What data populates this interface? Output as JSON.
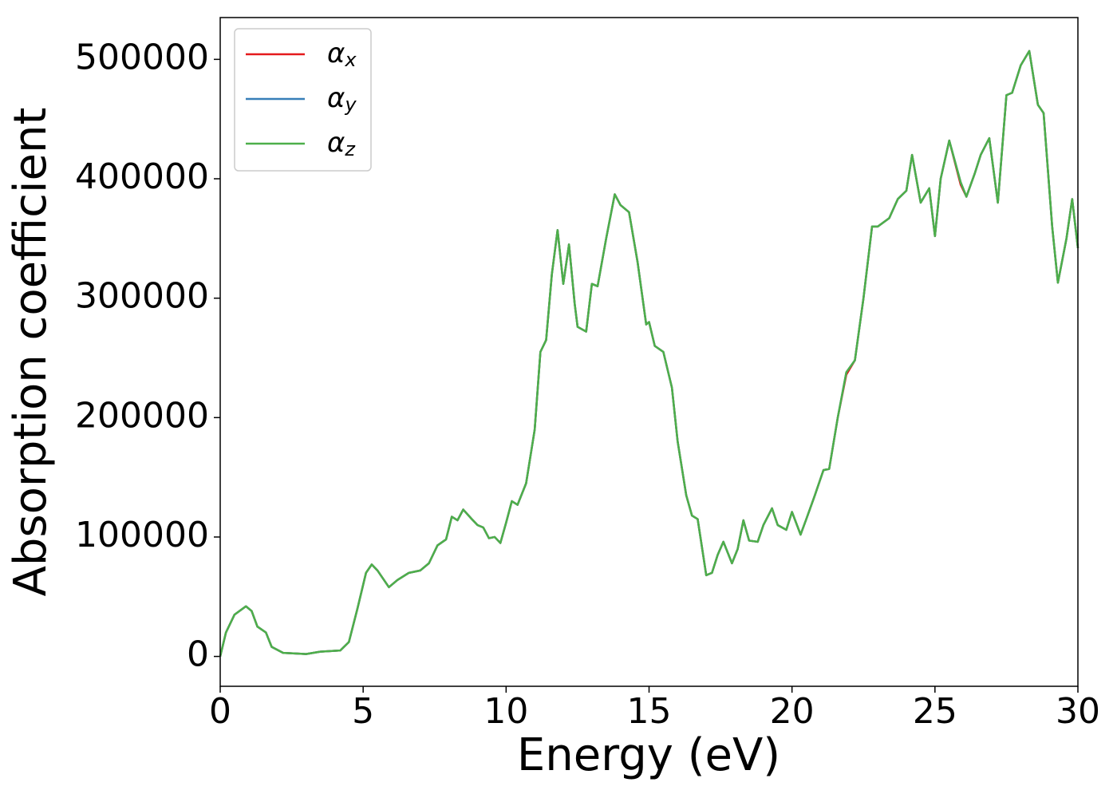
{
  "chart_data": {
    "type": "line",
    "xlabel": "Energy (eV)",
    "ylabel": "Absorption coefficient",
    "x": [
      0,
      0.2,
      0.5,
      0.9,
      1.1,
      1.3,
      1.6,
      1.8,
      2.2,
      3,
      3.5,
      4.2,
      4.5,
      4.8,
      5.1,
      5.3,
      5.5,
      5.7,
      5.9,
      6.2,
      6.6,
      7,
      7.3,
      7.6,
      7.9,
      8.1,
      8.3,
      8.5,
      8.8,
      9,
      9.2,
      9.4,
      9.6,
      9.8,
      10,
      10.2,
      10.4,
      10.7,
      11,
      11.2,
      11.4,
      11.6,
      11.8,
      12,
      12.2,
      12.4,
      12.5,
      12.8,
      13,
      13.2,
      13.5,
      13.8,
      14,
      14.3,
      14.6,
      14.9,
      15,
      15.2,
      15.5,
      15.8,
      16,
      16.3,
      16.5,
      16.7,
      17,
      17.2,
      17.4,
      17.6,
      17.9,
      18.1,
      18.3,
      18.5,
      18.8,
      19,
      19.3,
      19.5,
      19.8,
      20,
      20.3,
      20.5,
      20.8,
      21.1,
      21.3,
      21.6,
      21.9,
      22.2,
      22.5,
      22.8,
      23,
      23.4,
      23.7,
      24,
      24.2,
      24.5,
      24.8,
      25,
      25.2,
      25.5,
      25.9,
      26.1,
      26.4,
      26.6,
      26.9,
      27.2,
      27.5,
      27.7,
      28,
      28.3,
      28.6,
      28.8,
      29.1,
      29.3,
      29.6,
      29.8,
      30
    ],
    "series": [
      {
        "name": "αx",
        "color": "#e41a1c",
        "values": [
          0,
          20000,
          35000,
          42000,
          38000,
          25000,
          20000,
          8000,
          3000,
          2000,
          4000,
          5000,
          12000,
          40000,
          70000,
          77000,
          72000,
          65000,
          58000,
          64000,
          70000,
          72000,
          78000,
          93000,
          98000,
          117000,
          114000,
          123000,
          115000,
          110000,
          108000,
          99000,
          100000,
          95000,
          112000,
          130000,
          127000,
          145000,
          190000,
          255000,
          265000,
          320000,
          357000,
          312000,
          345000,
          295000,
          276000,
          272000,
          312000,
          310000,
          350000,
          387000,
          378000,
          372000,
          330000,
          278000,
          280000,
          260000,
          255000,
          225000,
          180000,
          135000,
          118000,
          115000,
          68000,
          70000,
          85000,
          96000,
          78000,
          90000,
          114000,
          97000,
          96000,
          110000,
          124000,
          110000,
          106000,
          121000,
          102000,
          115000,
          135000,
          156000,
          157000,
          200000,
          236000,
          248000,
          300000,
          360000,
          360000,
          367000,
          383000,
          390000,
          420000,
          380000,
          392000,
          352000,
          400000,
          432000,
          395000,
          385000,
          405000,
          420000,
          434000,
          380000,
          470000,
          472000,
          495000,
          507000,
          462000,
          455000,
          360000,
          313000,
          350000,
          383000,
          342000
        ]
      },
      {
        "name": "αy",
        "color": "#377eb8",
        "values": [
          0,
          20000,
          35000,
          42000,
          38000,
          25000,
          20000,
          8000,
          3000,
          2000,
          4000,
          5000,
          12000,
          40000,
          70000,
          77000,
          72000,
          65000,
          58000,
          64000,
          70000,
          72000,
          78000,
          93000,
          98000,
          117000,
          114000,
          123000,
          115000,
          110000,
          108000,
          99000,
          100000,
          95000,
          112000,
          130000,
          127000,
          145000,
          190000,
          255000,
          265000,
          320000,
          357000,
          312000,
          345000,
          295000,
          276000,
          272000,
          312000,
          310000,
          350000,
          387000,
          378000,
          372000,
          330000,
          278000,
          280000,
          260000,
          255000,
          225000,
          180000,
          135000,
          118000,
          115000,
          68000,
          70000,
          85000,
          96000,
          78000,
          90000,
          114000,
          97000,
          96000,
          110000,
          124000,
          110000,
          106000,
          121000,
          102000,
          115000,
          135000,
          156000,
          157000,
          200000,
          238000,
          248000,
          300000,
          360000,
          360000,
          367000,
          383000,
          390000,
          420000,
          380000,
          392000,
          352000,
          400000,
          432000,
          397000,
          385000,
          405000,
          420000,
          434000,
          380000,
          470000,
          472000,
          495000,
          507000,
          462000,
          455000,
          360000,
          313000,
          350000,
          383000,
          342000
        ]
      },
      {
        "name": "αz",
        "color": "#4daf4a",
        "values": [
          0,
          20000,
          35000,
          42000,
          38000,
          25000,
          20000,
          8000,
          3000,
          2000,
          4000,
          5000,
          12000,
          40000,
          70000,
          77000,
          72000,
          65000,
          58000,
          64000,
          70000,
          72000,
          78000,
          93000,
          98000,
          117000,
          114000,
          123000,
          115000,
          110000,
          108000,
          99000,
          100000,
          95000,
          112000,
          130000,
          127000,
          145000,
          190000,
          255000,
          265000,
          320000,
          357000,
          312000,
          345000,
          295000,
          276000,
          272000,
          312000,
          310000,
          350000,
          387000,
          378000,
          372000,
          330000,
          278000,
          280000,
          260000,
          255000,
          225000,
          180000,
          135000,
          118000,
          115000,
          68000,
          70000,
          85000,
          96000,
          78000,
          90000,
          114000,
          97000,
          96000,
          110000,
          124000,
          110000,
          106000,
          121000,
          102000,
          115000,
          135000,
          156000,
          157000,
          200000,
          238000,
          248000,
          300000,
          360000,
          360000,
          367000,
          383000,
          390000,
          420000,
          380000,
          392000,
          352000,
          400000,
          432000,
          397000,
          385000,
          405000,
          420000,
          434000,
          380000,
          470000,
          472000,
          495000,
          507000,
          462000,
          455000,
          360000,
          313000,
          350000,
          383000,
          342000
        ]
      }
    ],
    "xlim": [
      0,
      30
    ],
    "xticks": [
      0,
      5,
      10,
      15,
      20,
      25,
      30
    ],
    "ylim": [
      -25000,
      535000
    ],
    "yticks": [
      0,
      100000,
      200000,
      300000,
      400000,
      500000
    ],
    "legend": "upper left"
  }
}
